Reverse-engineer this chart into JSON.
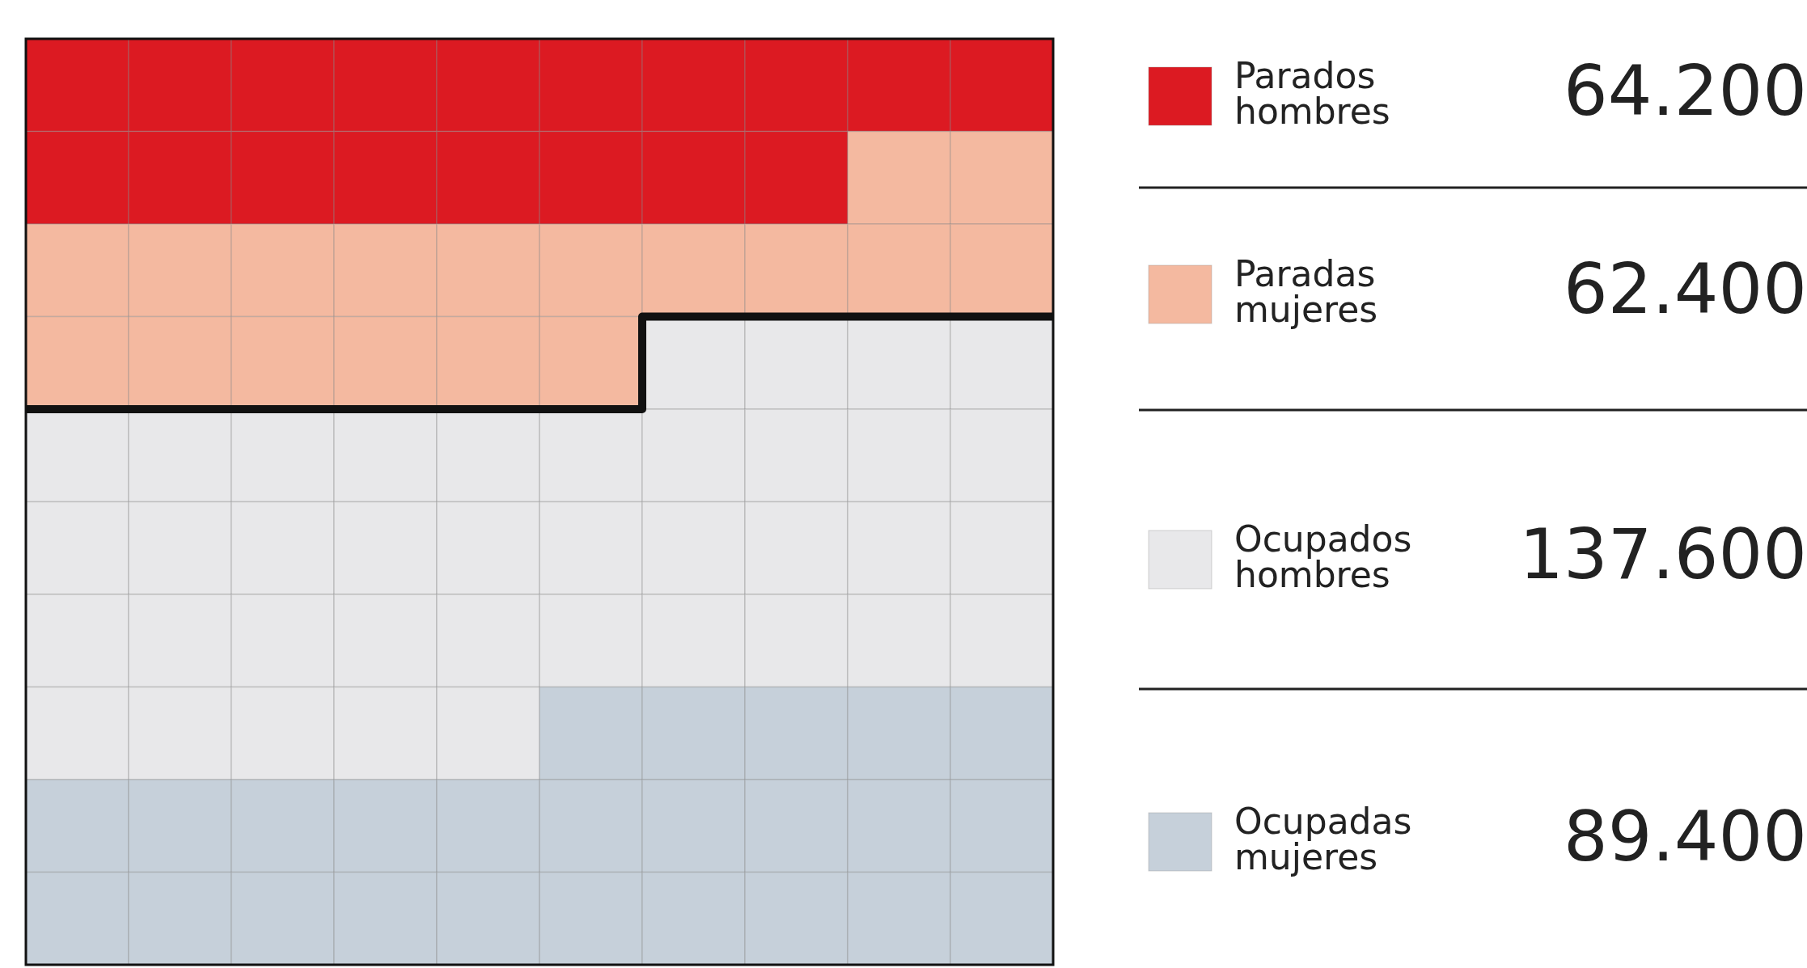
{
  "chart_data": {
    "type": "other",
    "categories": [
      "Parados hombres",
      "Paradas mujeres",
      "Ocupados hombres",
      "Ocupadas mujeres"
    ],
    "values": [
      64200,
      62400,
      137600,
      89400
    ],
    "value_labels": [
      "64.200",
      "62.400",
      "137.600",
      "89.400"
    ],
    "colors": [
      "#dc1a22",
      "#f4b9a0",
      "#e8e8ea",
      "#c6d0da"
    ]
  }
}
